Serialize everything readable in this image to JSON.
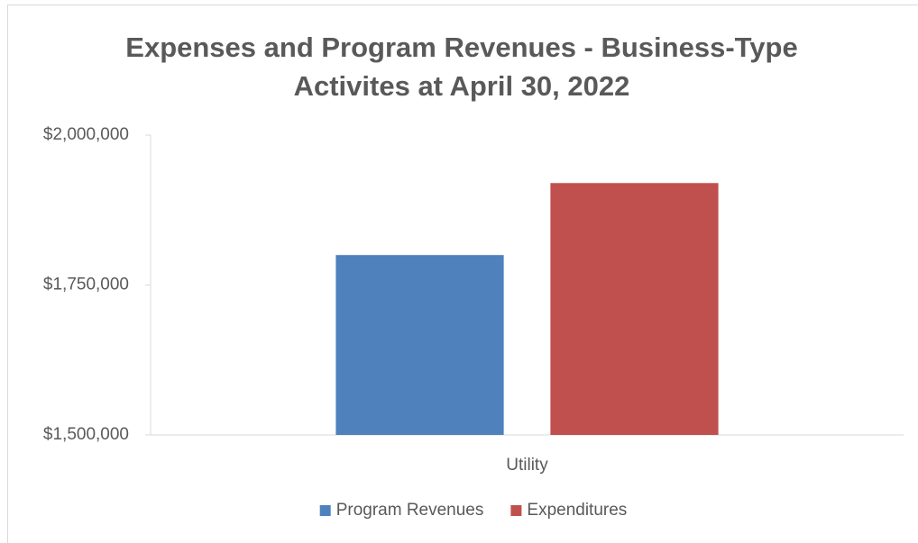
{
  "chart_data": {
    "type": "bar",
    "title": [
      "Expenses and Program Revenues - Business-Type",
      "Activites at April 30, 2022"
    ],
    "categories": [
      "Utility"
    ],
    "series": [
      {
        "name": "Program Revenues",
        "color": "#4f81bd",
        "values": [
          1800000
        ]
      },
      {
        "name": "Expenditures",
        "color": "#c0504d",
        "values": [
          1920000
        ]
      }
    ],
    "ylim": [
      1500000,
      2000000
    ],
    "yticks": [
      {
        "value": 1500000,
        "label": "$1,500,000"
      },
      {
        "value": 1750000,
        "label": "$1,750,000"
      },
      {
        "value": 2000000,
        "label": "$2,000,000"
      }
    ],
    "legend": "bottom"
  }
}
